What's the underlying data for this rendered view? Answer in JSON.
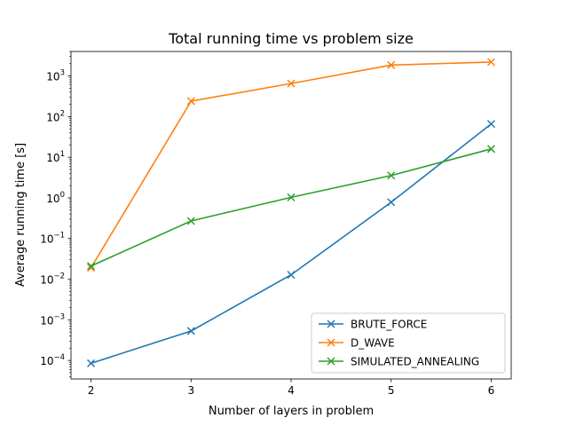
{
  "chart_data": {
    "type": "line",
    "title": "Total running time vs problem size",
    "xlabel": "Number of layers in problem",
    "ylabel": "Average running time [s]",
    "x": [
      2,
      3,
      4,
      5,
      6
    ],
    "xlim": [
      1.8,
      6.2
    ],
    "ylim": [
      3.5e-05,
      4000
    ],
    "yscale": "log",
    "x_ticks": [
      "2",
      "3",
      "4",
      "5",
      "6"
    ],
    "y_ticks": [
      {
        "base": "10",
        "exp": "−4",
        "value": 0.0001
      },
      {
        "base": "10",
        "exp": "−3",
        "value": 0.001
      },
      {
        "base": "10",
        "exp": "−2",
        "value": 0.01
      },
      {
        "base": "10",
        "exp": "−1",
        "value": 0.1
      },
      {
        "base": "10",
        "exp": "0",
        "value": 1
      },
      {
        "base": "10",
        "exp": "1",
        "value": 10
      },
      {
        "base": "10",
        "exp": "2",
        "value": 100
      },
      {
        "base": "10",
        "exp": "3",
        "value": 1000
      }
    ],
    "marker": "x",
    "grid": false,
    "legend_position": "lower-right",
    "series": [
      {
        "name": "BRUTE_FORCE",
        "color": "#1f77b4",
        "values": [
          8.5e-05,
          0.00053,
          0.0128,
          0.78,
          66
        ]
      },
      {
        "name": "D_WAVE",
        "color": "#ff7f0e",
        "values": [
          0.019,
          240,
          650,
          1850,
          2200
        ]
      },
      {
        "name": "SIMULATED_ANNEALING",
        "color": "#2ca02c",
        "values": [
          0.021,
          0.27,
          1.03,
          3.55,
          16
        ]
      }
    ]
  }
}
